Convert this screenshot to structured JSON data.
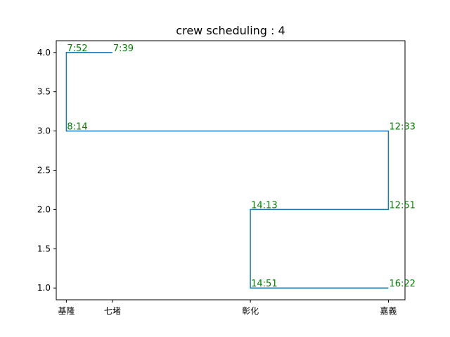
{
  "chart_data": {
    "type": "line",
    "title": "crew scheduling : 4",
    "xlabel": "",
    "ylabel": "",
    "x_categories": [
      "基隆",
      "七堵",
      "彰化",
      "嘉義"
    ],
    "x_category_positions": [
      0,
      1,
      4,
      7
    ],
    "xlim": [
      -0.22,
      7.36
    ],
    "ylim": [
      0.85,
      4.15
    ],
    "y_ticks": [
      1.0,
      1.5,
      2.0,
      2.5,
      3.0,
      3.5,
      4.0
    ],
    "y_tick_labels": [
      "1.0",
      "1.5",
      "2.0",
      "2.5",
      "3.0",
      "3.5",
      "4.0"
    ],
    "grid": false,
    "line_color": "#1f77b4",
    "annotation_color": "#008000",
    "series": [
      {
        "x": [
          1,
          0,
          0,
          7,
          7,
          4,
          4,
          7
        ],
        "y": [
          4,
          4,
          3,
          3,
          2,
          2,
          1,
          1
        ]
      }
    ],
    "annotations": [
      {
        "x": 0,
        "y": 4,
        "text": "7:52"
      },
      {
        "x": 1,
        "y": 4,
        "text": "7:39"
      },
      {
        "x": 0,
        "y": 3,
        "text": "8:14"
      },
      {
        "x": 7,
        "y": 3,
        "text": "12:33"
      },
      {
        "x": 7,
        "y": 2,
        "text": "12:51"
      },
      {
        "x": 4,
        "y": 2,
        "text": "14:13"
      },
      {
        "x": 4,
        "y": 1,
        "text": "14:51"
      },
      {
        "x": 7,
        "y": 1,
        "text": "16:22"
      }
    ]
  }
}
